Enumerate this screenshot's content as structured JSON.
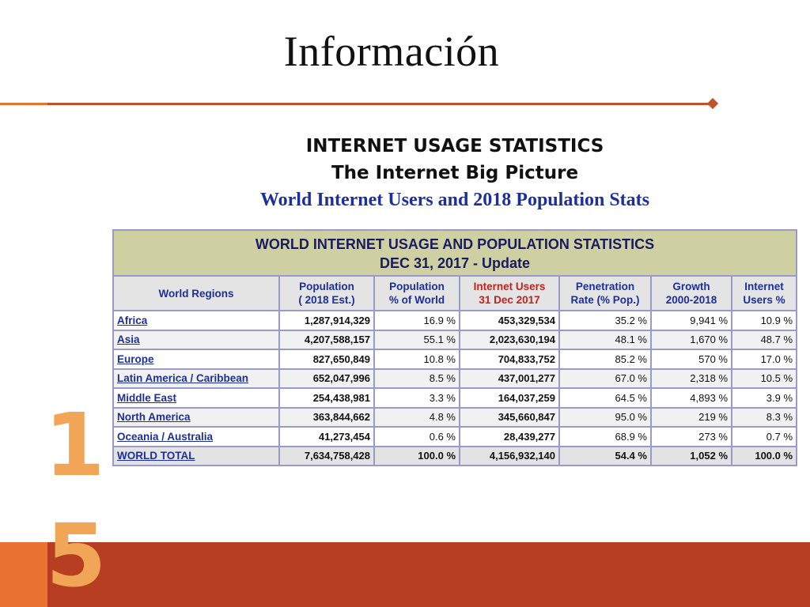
{
  "slide": {
    "title": "Información",
    "page_number_top": "1",
    "page_number_bottom": "5"
  },
  "headings": {
    "line1": "INTERNET USAGE STATISTICS",
    "line2": "The Internet Big Picture",
    "line3": "World Internet Users and 2018 Population Stats"
  },
  "table": {
    "caption_line1": "WORLD INTERNET USAGE AND POPULATION STATISTICS",
    "caption_line2": "DEC 31, 2017 - Update",
    "columns": [
      {
        "line1": "World Regions",
        "line2": ""
      },
      {
        "line1": "Population",
        "line2": "( 2018 Est.)"
      },
      {
        "line1": "Population",
        "line2": "% of World"
      },
      {
        "line1": "Internet Users",
        "line2": "31 Dec 2017"
      },
      {
        "line1": "Penetration",
        "line2": "Rate (% Pop.)"
      },
      {
        "line1": "Growth",
        "line2": "2000-2018"
      },
      {
        "line1": "Internet",
        "line2": "Users %"
      }
    ],
    "rows": [
      {
        "region": "Africa",
        "population": "1,287,914,329",
        "pct_world": "16.9 %",
        "internet_users": "453,329,534",
        "penetration": "35.2 %",
        "growth": "9,941 %",
        "users_pct": "10.9 %"
      },
      {
        "region": "Asia",
        "population": "4,207,588,157",
        "pct_world": "55.1 %",
        "internet_users": "2,023,630,194",
        "penetration": "48.1 %",
        "growth": "1,670 %",
        "users_pct": "48.7 %"
      },
      {
        "region": "Europe",
        "population": "827,650,849",
        "pct_world": "10.8 %",
        "internet_users": "704,833,752",
        "penetration": "85.2 %",
        "growth": "570 %",
        "users_pct": "17.0 %"
      },
      {
        "region": "Latin America / Caribbean",
        "population": "652,047,996",
        "pct_world": "8.5 %",
        "internet_users": "437,001,277",
        "penetration": "67.0 %",
        "growth": "2,318 %",
        "users_pct": "10.5 %"
      },
      {
        "region": "Middle East",
        "population": "254,438,981",
        "pct_world": "3.3 %",
        "internet_users": "164,037,259",
        "penetration": "64.5 %",
        "growth": "4,893 %",
        "users_pct": "3.9 %"
      },
      {
        "region": "North America",
        "population": "363,844,662",
        "pct_world": "4.8 %",
        "internet_users": "345,660,847",
        "penetration": "95.0 %",
        "growth": "219 %",
        "users_pct": "8.3 %"
      },
      {
        "region": "Oceania / Australia",
        "population": "41,273,454",
        "pct_world": "0.6 %",
        "internet_users": "28,439,277",
        "penetration": "68.9 %",
        "growth": "273 %",
        "users_pct": "0.7 %"
      }
    ],
    "total": {
      "region": "WORLD TOTAL",
      "population": "7,634,758,428",
      "pct_world": "100.0 %",
      "internet_users": "4,156,932,140",
      "penetration": "54.4 %",
      "growth": "1,052 %",
      "users_pct": "100.0 %"
    }
  },
  "colors": {
    "accent_orange": "#e8722f",
    "accent_rust": "#b83e22",
    "link_blue": "#1c2f9a",
    "caption_olive": "#cfd0a2",
    "header_red": "#c0221e"
  }
}
